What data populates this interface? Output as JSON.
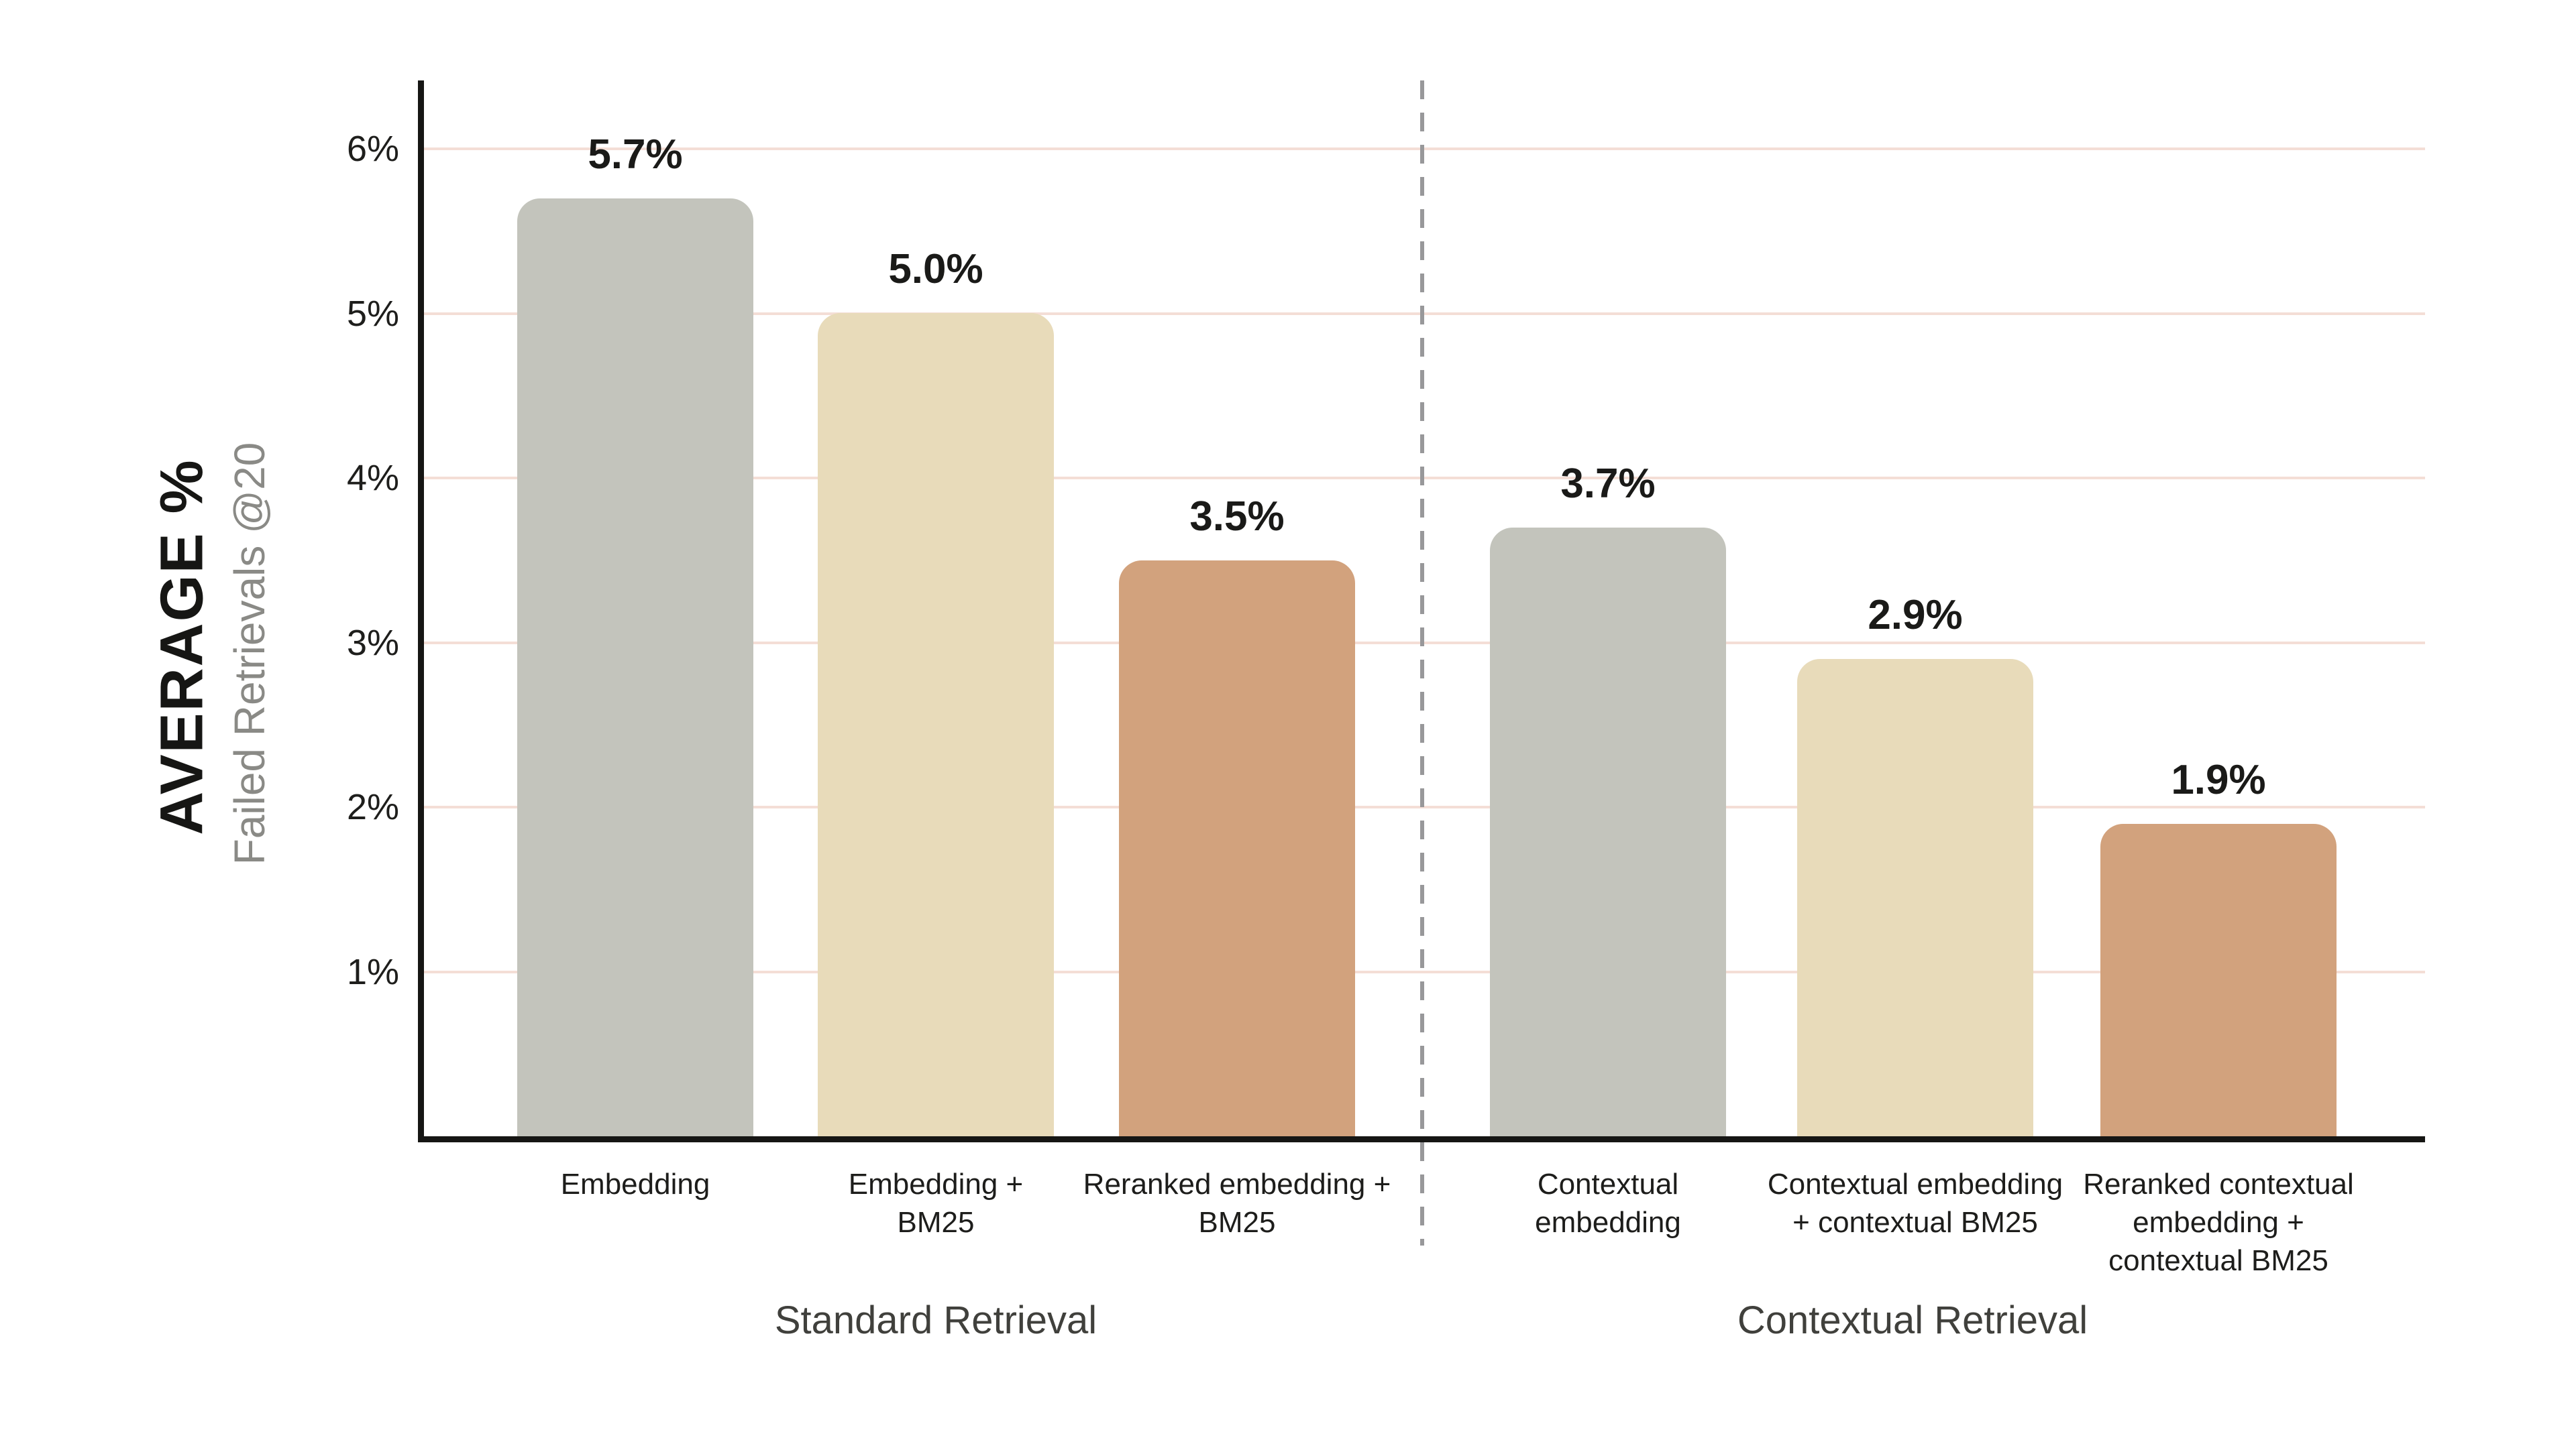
{
  "chart_data": {
    "type": "bar",
    "y_axis": {
      "title": "AVERAGE %",
      "subtitle": "Failed Retrievals @20",
      "tick_values": [
        1,
        2,
        3,
        4,
        5,
        6
      ],
      "tick_labels": [
        "1%",
        "2%",
        "3%",
        "4%",
        "5%",
        "6%"
      ],
      "ylim": [
        0,
        6.4
      ],
      "grid": true
    },
    "bars": [
      {
        "category": "Embedding",
        "value": 5.7,
        "label": "5.7%",
        "color": "#c3c4bc",
        "group": "Standard Retrieval"
      },
      {
        "category": "Embedding +\nBM25",
        "value": 5.0,
        "label": "5.0%",
        "color": "#e8dbba",
        "group": "Standard Retrieval"
      },
      {
        "category": "Reranked embedding +\nBM25",
        "value": 3.5,
        "label": "3.5%",
        "color": "#d2a27d",
        "group": "Standard Retrieval"
      },
      {
        "category": "Contextual\nembedding",
        "value": 3.7,
        "label": "3.7%",
        "color": "#c3c4bc",
        "group": "Contextual Retrieval"
      },
      {
        "category": "Contextual embedding\n+ contextual BM25",
        "value": 2.9,
        "label": "2.9%",
        "color": "#e8dbba",
        "group": "Contextual Retrieval"
      },
      {
        "category": "Reranked contextual\nembedding +\ncontextual BM25",
        "value": 1.9,
        "label": "1.9%",
        "color": "#d2a27d",
        "group": "Contextual Retrieval"
      }
    ],
    "group_labels": [
      "Standard Retrieval",
      "Contextual Retrieval"
    ],
    "divider_after_bar_index": 2,
    "colors": {
      "background": "#ffffff",
      "axis": "#161614",
      "gridline": "#f4ded6",
      "divider_dash": "#98989a",
      "value_label": "#1a1a18",
      "tick_label": "#1e1e1c",
      "category_label": "#1d1d1b",
      "group_label": "#40403c",
      "axis_title": "#161614",
      "axis_subtitle": "#8a8a86",
      "bar_gray": "#c3c4bc",
      "bar_cream": "#e8dbba",
      "bar_brown": "#d2a27d"
    },
    "legend": false
  }
}
